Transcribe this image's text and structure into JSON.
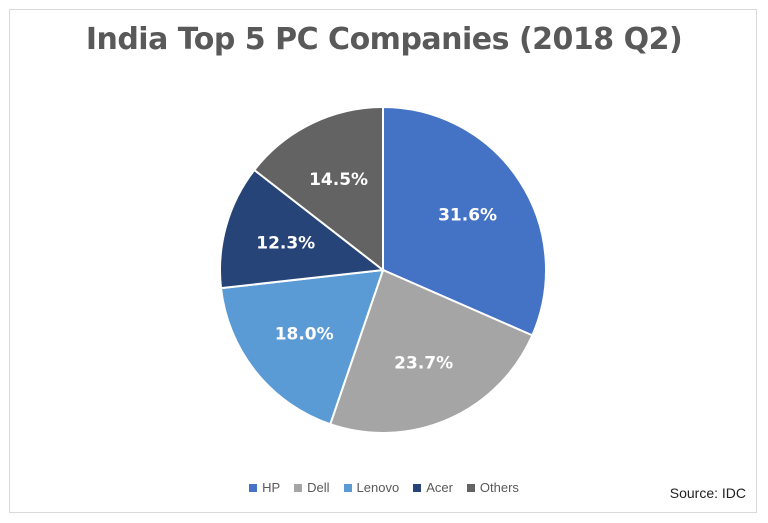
{
  "chart_data": {
    "type": "pie",
    "title": "India Top 5 PC Companies (2018 Q2)",
    "categories": [
      "HP",
      "Dell",
      "Lenovo",
      "Acer",
      "Others"
    ],
    "values": [
      31.6,
      23.7,
      18.0,
      12.3,
      14.5
    ],
    "labels": [
      "31.6%",
      "23.7%",
      "18.0%",
      "12.3%",
      "14.5%"
    ],
    "colors": [
      "#4472C4",
      "#A5A5A5",
      "#5B9BD5",
      "#264478",
      "#636363"
    ],
    "legend_position": "bottom",
    "source": "Source: IDC"
  }
}
